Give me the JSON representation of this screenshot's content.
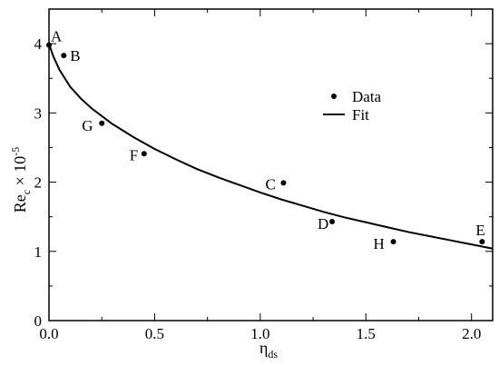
{
  "chart_data": {
    "type": "scatter",
    "xlabel": {
      "base": "η",
      "sub": "ds"
    },
    "ylabel": {
      "base": "Re",
      "sub": "c",
      "mid": " × 10",
      "sup": "-5"
    },
    "xlim": [
      0,
      2.1
    ],
    "ylim": [
      0,
      4.5
    ],
    "x_ticks": [
      0,
      0.5,
      1,
      1.5,
      2
    ],
    "x_tick_labels": [
      "0.0",
      "0.5",
      "1.0",
      "1.5",
      "2.0"
    ],
    "y_ticks": [
      0,
      1,
      2,
      3,
      4
    ],
    "y_tick_labels": [
      "0",
      "1",
      "2",
      "3",
      "4"
    ],
    "grid": false,
    "legend": {
      "position": "upper-right",
      "entries": [
        {
          "label": "Data",
          "symbol": "dot"
        },
        {
          "label": "Fit",
          "symbol": "line"
        }
      ]
    },
    "series": [
      {
        "name": "Data",
        "kind": "scatter",
        "points": [
          {
            "label": "A",
            "x": 0.0,
            "y": 3.98
          },
          {
            "label": "B",
            "x": 0.07,
            "y": 3.83
          },
          {
            "label": "G",
            "x": 0.25,
            "y": 2.85
          },
          {
            "label": "F",
            "x": 0.45,
            "y": 2.41
          },
          {
            "label": "C",
            "x": 1.11,
            "y": 1.99
          },
          {
            "label": "D",
            "x": 1.34,
            "y": 1.43
          },
          {
            "label": "H",
            "x": 1.63,
            "y": 1.14
          },
          {
            "label": "E",
            "x": 2.05,
            "y": 1.14
          }
        ]
      },
      {
        "name": "Fit",
        "kind": "line",
        "x": [
          0.0,
          0.02,
          0.05,
          0.1,
          0.15,
          0.2,
          0.3,
          0.4,
          0.5,
          0.6,
          0.7,
          0.8,
          0.9,
          1.0,
          1.1,
          1.2,
          1.3,
          1.4,
          1.5,
          1.6,
          1.7,
          1.8,
          1.9,
          2.0,
          2.1
        ],
        "y": [
          4.0,
          3.82,
          3.62,
          3.38,
          3.21,
          3.07,
          2.84,
          2.65,
          2.48,
          2.33,
          2.19,
          2.07,
          1.96,
          1.85,
          1.75,
          1.66,
          1.57,
          1.49,
          1.42,
          1.35,
          1.28,
          1.22,
          1.16,
          1.1,
          1.04
        ]
      }
    ]
  }
}
